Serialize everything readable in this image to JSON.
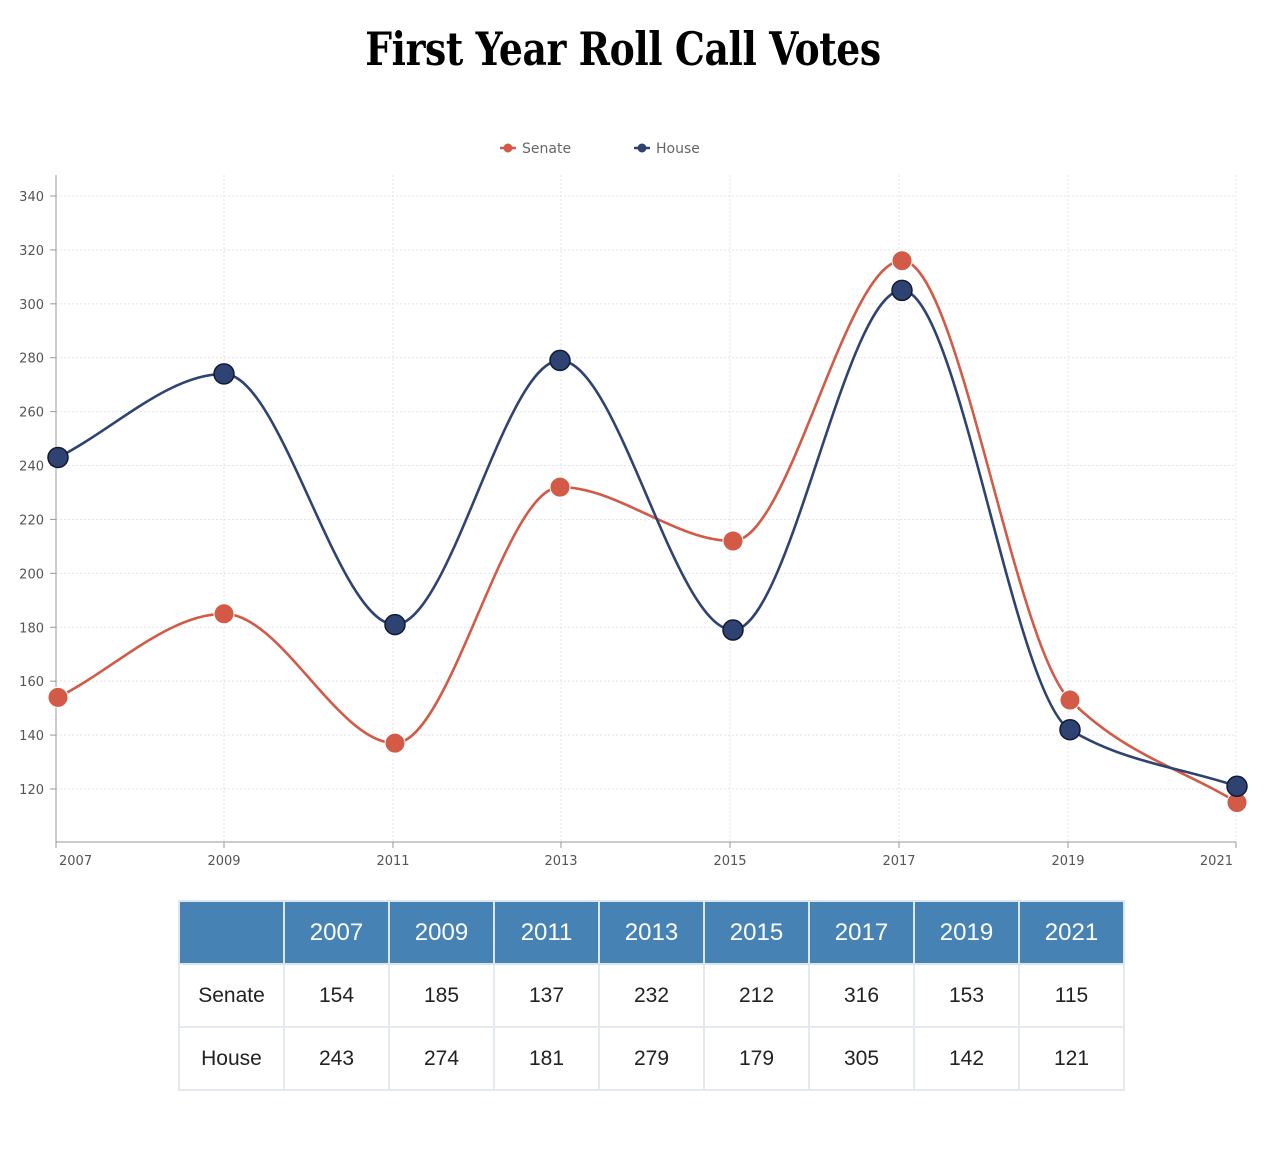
{
  "chart_data": {
    "type": "line",
    "title": "First Year Roll Call Votes",
    "categories": [
      "2007",
      "2009",
      "2011",
      "2013",
      "2015",
      "2017",
      "2019",
      "2021"
    ],
    "series": [
      {
        "name": "Senate",
        "values": [
          154,
          185,
          137,
          232,
          212,
          316,
          153,
          115
        ],
        "color": "#d35a46"
      },
      {
        "name": "House",
        "values": [
          243,
          274,
          181,
          279,
          179,
          305,
          142,
          121
        ],
        "color": "#2f4373"
      }
    ],
    "ylim": [
      100,
      340
    ],
    "yticks": [
      120,
      140,
      160,
      180,
      200,
      220,
      240,
      260,
      280,
      300,
      320,
      340
    ],
    "smooth": true,
    "grid": true,
    "legend": "top-center",
    "xlabel": "",
    "ylabel": ""
  },
  "table": {
    "corner": "",
    "headers": [
      "2007",
      "2009",
      "2011",
      "2013",
      "2015",
      "2017",
      "2019",
      "2021"
    ],
    "rows": [
      {
        "label": "Senate",
        "values": [
          "154",
          "185",
          "137",
          "232",
          "212",
          "316",
          "153",
          "115"
        ]
      },
      {
        "label": "House",
        "values": [
          "243",
          "274",
          "181",
          "279",
          "179",
          "305",
          "142",
          "121"
        ]
      }
    ]
  },
  "colors": {
    "senate": "#d35a46",
    "house": "#2f4373",
    "table_header": "#4682b4"
  }
}
